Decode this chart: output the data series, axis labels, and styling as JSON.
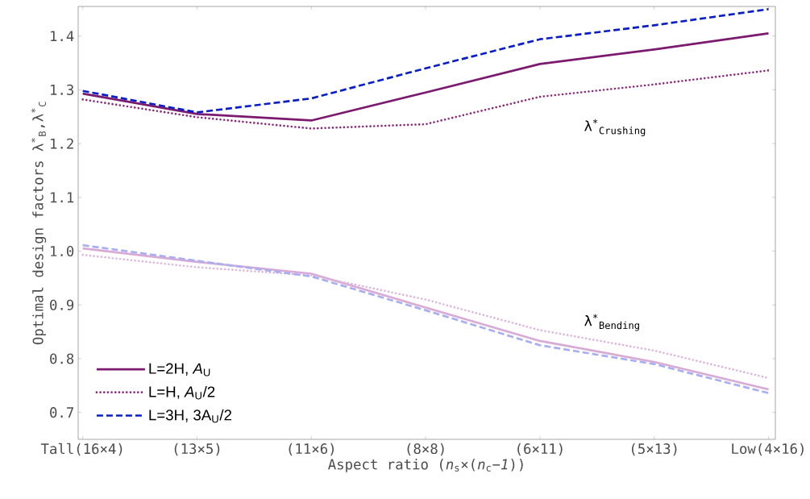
{
  "chart_data": {
    "type": "line",
    "xlabel": "Aspect ratio (*n*$_{s}$×(*n*$_{c}$−*1*))",
    "ylabel": "Optimal design factors λ$^{*}$$_{B}$,λ$^{*}$$_{C}$",
    "categories": [
      "Tall(16×4)",
      "(13×5)",
      "(11×6)",
      "(8×8)",
      "(6×11)",
      "(5×13)",
      "Low(4×16)"
    ],
    "ylim": [
      0.65,
      1.455
    ],
    "yticks": [
      {
        "value": 0.7,
        "label": "0.7"
      },
      {
        "value": 0.8,
        "label": "0.8"
      },
      {
        "value": 0.9,
        "label": "0.9"
      },
      {
        "value": 1.0,
        "label": "1.0"
      },
      {
        "value": 1.1,
        "label": "1.1"
      },
      {
        "value": 1.2,
        "label": "1.2"
      },
      {
        "value": 1.3,
        "label": "1.3"
      },
      {
        "value": 1.4,
        "label": "1.4"
      }
    ],
    "series": [
      {
        "name": "L=2H, *A*$_{U}$",
        "color": "#7b1a6f",
        "line_style": "solid",
        "values": [
          1.293,
          1.255,
          1.243,
          1.295,
          1.348,
          1.375,
          1.405
        ]
      },
      {
        "name": "L=H, *A*$_{U}$/2",
        "color": "#8b2a7b",
        "line_style": "dotted",
        "values": [
          1.282,
          1.249,
          1.228,
          1.236,
          1.287,
          1.31,
          1.336
        ]
      },
      {
        "name": "L=3H, 3A$_{U}$/2",
        "color": "#0a1ec8",
        "line_style": "dashed",
        "values": [
          1.298,
          1.258,
          1.284,
          1.34,
          1.394,
          1.42,
          1.45
        ]
      },
      {
        "color": "#d8aad6",
        "line_style": "solid",
        "values": [
          1.005,
          0.98,
          0.958,
          0.895,
          0.833,
          0.794,
          0.743
        ]
      },
      {
        "color": "#deb4dc",
        "line_style": "dotted",
        "values": [
          0.993,
          0.97,
          0.955,
          0.91,
          0.853,
          0.815,
          0.764
        ]
      },
      {
        "color": "#a8aef2",
        "line_style": "dashed",
        "values": [
          1.011,
          0.982,
          0.953,
          0.89,
          0.825,
          0.79,
          0.736
        ]
      }
    ],
    "annotations": [
      "λ$^{*}$$_{Crushing}$",
      "λ$^{*}$$_{Bending}$"
    ],
    "legend": "bottom left",
    "grid": false
  }
}
